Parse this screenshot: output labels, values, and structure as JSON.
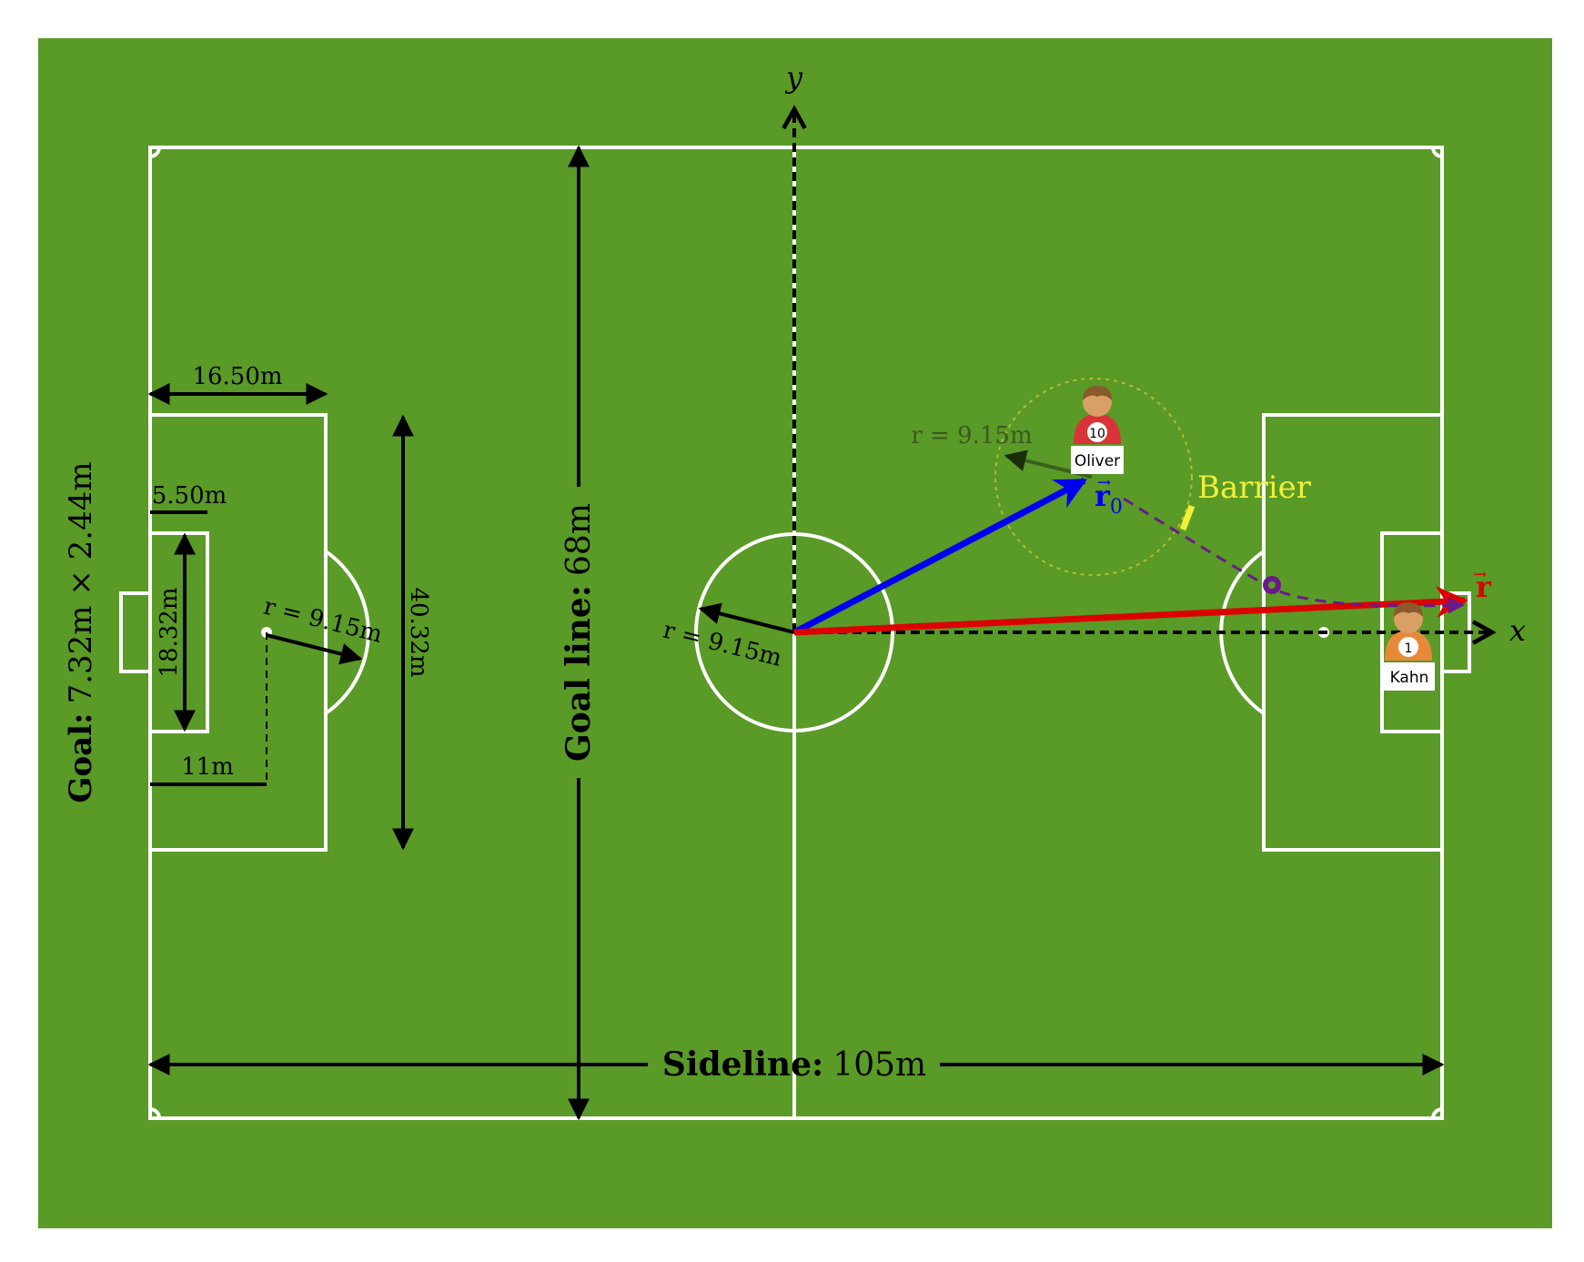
{
  "labels": {
    "axis_x": "x",
    "axis_y": "y",
    "penalty_box_depth": "16.50m",
    "goal_box_depth": "5.50m",
    "goal_box_width": "18.32m",
    "penalty_spot_distance": "11m",
    "left_arc_radius": "r = 9.15m",
    "penalty_box_width": "40.32m",
    "goal_line_bold": "Goal line:",
    "goal_line_value": "68m",
    "center_radius": "r = 9.15m",
    "oliver_radius": "r = 9.15m",
    "sideline_bold": "Sideline:",
    "sideline_value": "105m",
    "goal_bold": "Goal:",
    "goal_value": "7.32m × 2.44m",
    "barrier": "Barrier",
    "r0_symbol": "r",
    "r0_subscript": "0",
    "r_symbol": "r"
  },
  "players": [
    {
      "name": "Oliver",
      "number": "10"
    },
    {
      "name": "Kahn",
      "number": "1"
    }
  ],
  "colors": {
    "grass": "#5a9a27",
    "lines": "#ffffff",
    "vector_r0": "#0000ee",
    "vector_r": "#dd0000",
    "barrier": "#f0f03a",
    "trajectory": "#6a1a8a",
    "oliver_shirt": "#d9333a",
    "kahn_shirt": "#e8893a"
  }
}
